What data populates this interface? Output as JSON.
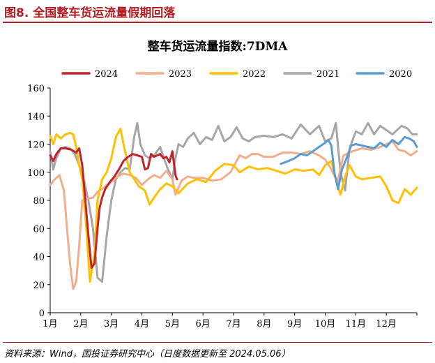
{
  "figure": {
    "title": "图8. 全国整车货运流量假期回落",
    "source": "资料来源：Wind，国投证券研究中心（日度数据更新至 2024.05.06）",
    "accent_color": "#b01e23"
  },
  "chart_data": {
    "type": "line",
    "title": "整车货运流量指数:7DMA",
    "xlabel": "",
    "ylabel": "",
    "ylim": [
      0,
      160
    ],
    "yticks": [
      0,
      20,
      40,
      60,
      80,
      100,
      120,
      140,
      160
    ],
    "xlim": [
      1,
      13
    ],
    "xticks": [
      "1月",
      "2月",
      "3月",
      "4月",
      "5月",
      "6月",
      "7月",
      "8月",
      "9月",
      "10月",
      "11月",
      "12月"
    ],
    "grid": false,
    "legend_position": "top",
    "series": [
      {
        "name": "2024",
        "color": "#c0232a",
        "x": [
          1.0,
          1.1,
          1.2,
          1.35,
          1.5,
          1.7,
          1.85,
          1.95,
          2.05,
          2.15,
          2.25,
          2.35,
          2.45,
          2.55,
          2.62,
          2.7,
          2.8,
          2.95,
          3.1,
          3.25,
          3.4,
          3.55,
          3.7,
          3.85,
          4.0,
          4.1,
          4.2,
          4.3,
          4.4,
          4.5,
          4.6,
          4.7,
          4.8,
          4.9,
          5.0,
          5.1,
          5.15
        ],
        "values": [
          112,
          108,
          113,
          117,
          117,
          116,
          114,
          117,
          105,
          80,
          55,
          32,
          35,
          60,
          75,
          82,
          88,
          93,
          97,
          102,
          108,
          111,
          113,
          112,
          111,
          102,
          103,
          113,
          111,
          112,
          113,
          110,
          111,
          107,
          115,
          98,
          95
        ]
      },
      {
        "name": "2023",
        "color": "#f2ae8c",
        "x": [
          1.0,
          1.15,
          1.3,
          1.45,
          1.55,
          1.65,
          1.75,
          1.85,
          1.95,
          2.05,
          2.2,
          2.4,
          2.55,
          2.7,
          2.85,
          3.0,
          3.2,
          3.4,
          3.6,
          3.8,
          4.0,
          4.2,
          4.4,
          4.6,
          4.8,
          5.0,
          5.1,
          5.3,
          5.5,
          5.7,
          6.0,
          6.3,
          6.6,
          6.9,
          7.2,
          7.4,
          7.6,
          7.8,
          8.0,
          8.3,
          8.6,
          8.9,
          9.2,
          9.5,
          9.8,
          10.0,
          10.2,
          10.4,
          10.6,
          10.9,
          11.2,
          11.5,
          11.8,
          12.0,
          12.2,
          12.4,
          12.6,
          12.8,
          13.0
        ],
        "values": [
          91,
          95,
          98,
          87,
          60,
          35,
          17,
          22,
          48,
          80,
          81,
          82,
          86,
          88,
          91,
          93,
          97,
          99,
          98,
          96,
          91,
          95,
          98,
          96,
          101,
          95,
          84,
          94,
          97,
          96,
          96,
          94,
          95,
          100,
          112,
          110,
          113,
          113,
          111,
          111,
          114,
          114,
          113,
          115,
          112,
          109,
          102,
          93,
          112,
          115,
          117,
          116,
          118,
          120,
          122,
          116,
          115,
          112,
          115
        ]
      },
      {
        "name": "2022",
        "color": "#ffc000",
        "x": [
          1.0,
          1.1,
          1.2,
          1.35,
          1.5,
          1.65,
          1.75,
          1.85,
          1.95,
          2.05,
          2.15,
          2.3,
          2.45,
          2.55,
          2.7,
          2.85,
          3.0,
          3.15,
          3.3,
          3.4,
          3.5,
          3.6,
          3.75,
          3.9,
          4.1,
          4.25,
          4.4,
          4.6,
          4.8,
          5.0,
          5.2,
          5.5,
          5.8,
          6.1,
          6.4,
          6.7,
          7.0,
          7.2,
          7.5,
          7.8,
          8.1,
          8.4,
          8.7,
          9.0,
          9.3,
          9.6,
          9.8,
          10.0,
          10.2,
          10.35,
          10.5,
          10.65,
          10.8,
          11.0,
          11.2,
          11.5,
          11.8,
          12.0,
          12.2,
          12.4,
          12.6,
          12.8,
          13.0
        ],
        "values": [
          126,
          120,
          127,
          124,
          127,
          128,
          127,
          118,
          105,
          95,
          70,
          22,
          42,
          80,
          95,
          100,
          110,
          125,
          131,
          120,
          110,
          100,
          95,
          90,
          87,
          77,
          82,
          88,
          92,
          90,
          85,
          92,
          95,
          93,
          101,
          106,
          105,
          100,
          104,
          102,
          103,
          101,
          99,
          102,
          101,
          102,
          98,
          105,
          108,
          95,
          84,
          97,
          105,
          97,
          95,
          96,
          97,
          90,
          80,
          78,
          88,
          84,
          89
        ]
      },
      {
        "name": "2021",
        "color": "#a6a6a6",
        "x": [
          1.0,
          1.1,
          1.2,
          1.35,
          1.5,
          1.65,
          1.8,
          1.95,
          2.1,
          2.25,
          2.4,
          2.55,
          2.7,
          2.85,
          3.0,
          3.15,
          3.3,
          3.45,
          3.6,
          3.75,
          3.85,
          3.95,
          4.1,
          4.25,
          4.4,
          4.6,
          4.8,
          5.0,
          5.1,
          5.2,
          5.35,
          5.5,
          5.7,
          5.9,
          6.1,
          6.3,
          6.5,
          6.7,
          6.9,
          7.1,
          7.3,
          7.5,
          7.7,
          8.0,
          8.3,
          8.6,
          8.9,
          9.2,
          9.5,
          9.8,
          10.0,
          10.2,
          10.35,
          10.5,
          10.65,
          10.8,
          11.0,
          11.2,
          11.4,
          11.6,
          11.8,
          12.0,
          12.2,
          12.5,
          12.7,
          12.85,
          13.0
        ],
        "values": [
          115,
          102,
          110,
          117,
          118,
          117,
          113,
          105,
          95,
          80,
          60,
          25,
          22,
          55,
          80,
          95,
          100,
          103,
          102,
          125,
          135,
          120,
          112,
          110,
          112,
          118,
          105,
          95,
          110,
          120,
          118,
          124,
          128,
          120,
          125,
          123,
          133,
          122,
          125,
          132,
          124,
          122,
          125,
          126,
          125,
          127,
          124,
          134,
          127,
          133,
          122,
          124,
          135,
          100,
          87,
          117,
          129,
          127,
          135,
          127,
          133,
          130,
          127,
          133,
          131,
          127,
          127
        ]
      },
      {
        "name": "2020",
        "color": "#5b9bd5",
        "x": [
          8.55,
          8.8,
          9.0,
          9.2,
          9.4,
          9.6,
          9.8,
          10.0,
          10.1,
          10.2,
          10.3,
          10.42,
          10.55,
          10.7,
          10.85,
          11.0,
          11.2,
          11.4,
          11.6,
          11.8,
          12.0,
          12.2,
          12.4,
          12.6,
          12.75,
          12.9,
          13.0
        ],
        "values": [
          106,
          108,
          110,
          113,
          112,
          115,
          118,
          121,
          123,
          119,
          100,
          88,
          102,
          110,
          119,
          120,
          119,
          118,
          117,
          121,
          118,
          123,
          120,
          125,
          124,
          122,
          118
        ]
      }
    ]
  }
}
